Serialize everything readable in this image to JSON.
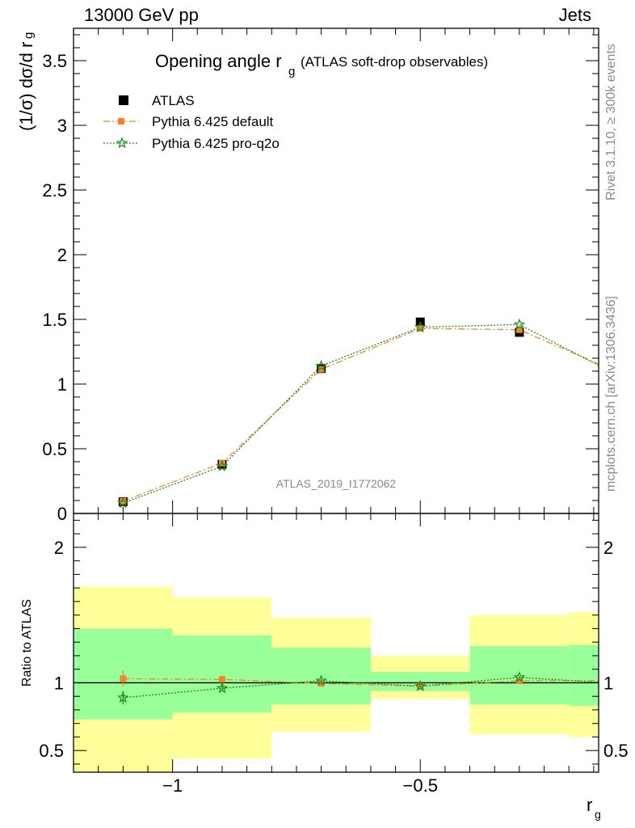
{
  "header": {
    "left": "13000 GeV pp",
    "right": "Jets"
  },
  "side_labels": {
    "rivet": "Rivet 3.1.10, ≥ 300k events",
    "mcplots": "mcplots.cern.ch [arXiv:1306.3436]"
  },
  "watermark": "ATLAS_2019_I1772062",
  "chart_data": [
    {
      "type": "scatter",
      "panel": "main",
      "title_main": "Opening angle r",
      "title_sub": "g",
      "title_rest": "(ATLAS soft-drop observables)",
      "ylabel": "(1/σ) dσ/d r",
      "ylabel_sub": "g",
      "xlim": [
        -1.2,
        -0.14
      ],
      "ylim": [
        0,
        3.75
      ],
      "yticks": [
        0,
        0.5,
        1,
        1.5,
        2,
        2.5,
        3,
        3.5
      ],
      "ytick_labels": [
        "0",
        "0.5",
        "1",
        "1.5",
        "2",
        "2.5",
        "3",
        "3.5"
      ],
      "legend_position": "top-left",
      "x": [
        -1.1,
        -0.9,
        -0.7,
        -0.5,
        -0.3,
        -0.1
      ],
      "series": [
        {
          "name": "ATLAS",
          "marker": "square",
          "color": "#000000",
          "values": [
            0.09,
            0.38,
            1.12,
            1.48,
            1.4,
            1.07
          ]
        },
        {
          "name": "Pythia 6.425 default",
          "marker": "filled-square",
          "color": "#f58230",
          "line": "dashdot",
          "values": [
            0.095,
            0.39,
            1.115,
            1.43,
            1.42,
            1.09
          ]
        },
        {
          "name": "Pythia 6.425 pro-q2o",
          "marker": "star",
          "color": "#1a8c1a",
          "line": "dotted",
          "values": [
            0.08,
            0.365,
            1.14,
            1.44,
            1.46,
            1.065
          ]
        }
      ]
    },
    {
      "type": "scatter",
      "panel": "ratio",
      "ylabel": "Ratio to ATLAS",
      "xlabel": "r",
      "xlabel_sub": "g",
      "xlim": [
        -1.2,
        -0.14
      ],
      "ylim": [
        0.34,
        2.25
      ],
      "yticks": [
        0.5,
        1,
        2
      ],
      "ytick_labels": [
        "0.5",
        "1",
        "2"
      ],
      "xticks": [
        -1,
        -0.5
      ],
      "xtick_labels": [
        "−1",
        "−0.5"
      ],
      "bins": [
        [
          -1.2,
          -1.0
        ],
        [
          -1.0,
          -0.8
        ],
        [
          -0.8,
          -0.6
        ],
        [
          -0.6,
          -0.4
        ],
        [
          -0.4,
          -0.2
        ],
        [
          -0.2,
          -0.1
        ]
      ],
      "band_outer": [
        [
          0.34,
          1.71
        ],
        [
          0.44,
          1.63
        ],
        [
          0.64,
          1.48
        ],
        [
          0.88,
          1.2
        ],
        [
          0.62,
          1.5
        ],
        [
          0.6,
          1.52
        ]
      ],
      "band_inner": [
        [
          0.73,
          1.4
        ],
        [
          0.78,
          1.35
        ],
        [
          0.84,
          1.26
        ],
        [
          0.94,
          1.08
        ],
        [
          0.84,
          1.27
        ],
        [
          0.83,
          1.28
        ]
      ],
      "x": [
        -1.1,
        -0.9,
        -0.7,
        -0.5,
        -0.3,
        -0.1
      ],
      "series": [
        {
          "name": "Pythia 6.425 default",
          "color": "#f58230",
          "values": [
            1.03,
            1.025,
            0.995,
            0.975,
            1.015,
            1.015
          ],
          "err": [
            0.06,
            0.025,
            0.015,
            0.01,
            0.01,
            0.015
          ]
        },
        {
          "name": "Pythia 6.425 pro-q2o",
          "color": "#1a8c1a",
          "values": [
            0.89,
            0.96,
            1.015,
            0.975,
            1.04,
            0.995
          ],
          "err": [
            0.05,
            0.02,
            0.01,
            0.01,
            0.01,
            0.015
          ]
        }
      ]
    }
  ]
}
